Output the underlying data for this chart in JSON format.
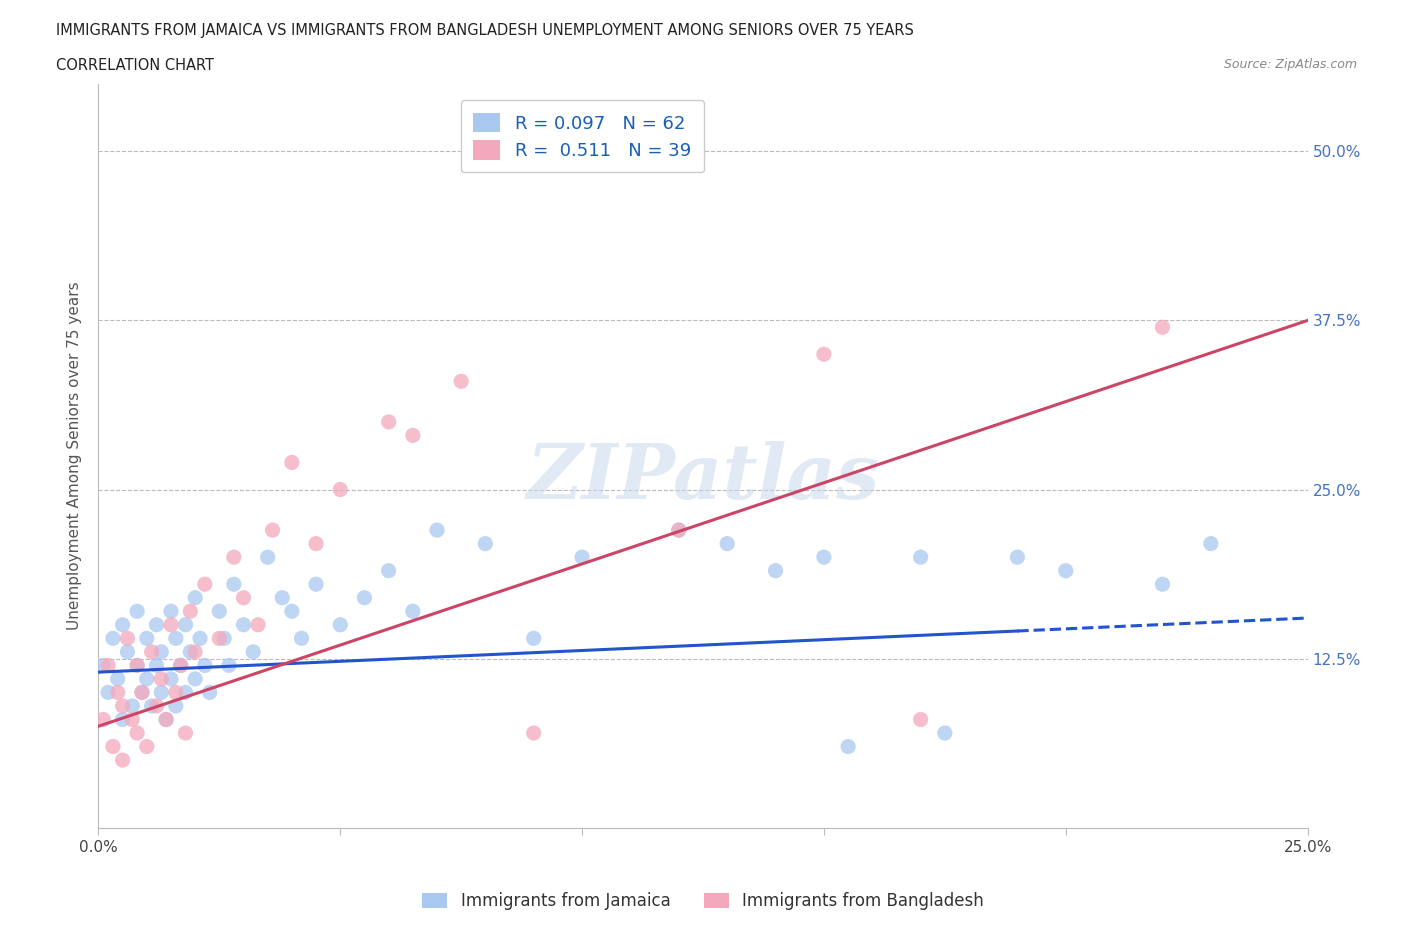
{
  "title_line1": "IMMIGRANTS FROM JAMAICA VS IMMIGRANTS FROM BANGLADESH UNEMPLOYMENT AMONG SENIORS OVER 75 YEARS",
  "title_line2": "CORRELATION CHART",
  "source": "Source: ZipAtlas.com",
  "ylabel": "Unemployment Among Seniors over 75 years",
  "xlim": [
    0.0,
    0.25
  ],
  "ylim": [
    0.0,
    0.55
  ],
  "jamaica_color": "#A8C8F0",
  "bangladesh_color": "#F4A8BC",
  "jamaica_line_color": "#2255CC",
  "bangladesh_line_color": "#CC4466",
  "R_jamaica": 0.097,
  "N_jamaica": 62,
  "R_bangladesh": 0.511,
  "N_bangladesh": 39,
  "legend_jamaica": "Immigrants from Jamaica",
  "legend_bangladesh": "Immigrants from Bangladesh",
  "watermark": "ZIPatlas",
  "jamaica_x": [
    0.001,
    0.002,
    0.003,
    0.004,
    0.005,
    0.005,
    0.006,
    0.007,
    0.008,
    0.008,
    0.009,
    0.01,
    0.01,
    0.011,
    0.012,
    0.012,
    0.013,
    0.013,
    0.014,
    0.015,
    0.015,
    0.016,
    0.016,
    0.017,
    0.018,
    0.018,
    0.019,
    0.02,
    0.02,
    0.021,
    0.022,
    0.023,
    0.025,
    0.026,
    0.027,
    0.028,
    0.03,
    0.032,
    0.035,
    0.038,
    0.04,
    0.042,
    0.045,
    0.05,
    0.055,
    0.06,
    0.065,
    0.07,
    0.08,
    0.09,
    0.1,
    0.12,
    0.13,
    0.14,
    0.15,
    0.17,
    0.19,
    0.2,
    0.22,
    0.23,
    0.155,
    0.175
  ],
  "jamaica_y": [
    0.12,
    0.1,
    0.14,
    0.11,
    0.08,
    0.15,
    0.13,
    0.09,
    0.16,
    0.12,
    0.1,
    0.14,
    0.11,
    0.09,
    0.15,
    0.12,
    0.1,
    0.13,
    0.08,
    0.16,
    0.11,
    0.14,
    0.09,
    0.12,
    0.15,
    0.1,
    0.13,
    0.17,
    0.11,
    0.14,
    0.12,
    0.1,
    0.16,
    0.14,
    0.12,
    0.18,
    0.15,
    0.13,
    0.2,
    0.17,
    0.16,
    0.14,
    0.18,
    0.15,
    0.17,
    0.19,
    0.16,
    0.22,
    0.21,
    0.14,
    0.2,
    0.22,
    0.21,
    0.19,
    0.2,
    0.2,
    0.2,
    0.19,
    0.18,
    0.21,
    0.06,
    0.07
  ],
  "bangladesh_x": [
    0.001,
    0.002,
    0.003,
    0.004,
    0.005,
    0.005,
    0.006,
    0.007,
    0.008,
    0.008,
    0.009,
    0.01,
    0.011,
    0.012,
    0.013,
    0.014,
    0.015,
    0.016,
    0.017,
    0.018,
    0.019,
    0.02,
    0.022,
    0.025,
    0.028,
    0.03,
    0.033,
    0.036,
    0.04,
    0.045,
    0.05,
    0.06,
    0.065,
    0.075,
    0.09,
    0.12,
    0.15,
    0.17,
    0.22
  ],
  "bangladesh_y": [
    0.08,
    0.12,
    0.06,
    0.1,
    0.05,
    0.09,
    0.14,
    0.08,
    0.07,
    0.12,
    0.1,
    0.06,
    0.13,
    0.09,
    0.11,
    0.08,
    0.15,
    0.1,
    0.12,
    0.07,
    0.16,
    0.13,
    0.18,
    0.14,
    0.2,
    0.17,
    0.15,
    0.22,
    0.27,
    0.21,
    0.25,
    0.3,
    0.29,
    0.33,
    0.07,
    0.22,
    0.35,
    0.08,
    0.37
  ]
}
